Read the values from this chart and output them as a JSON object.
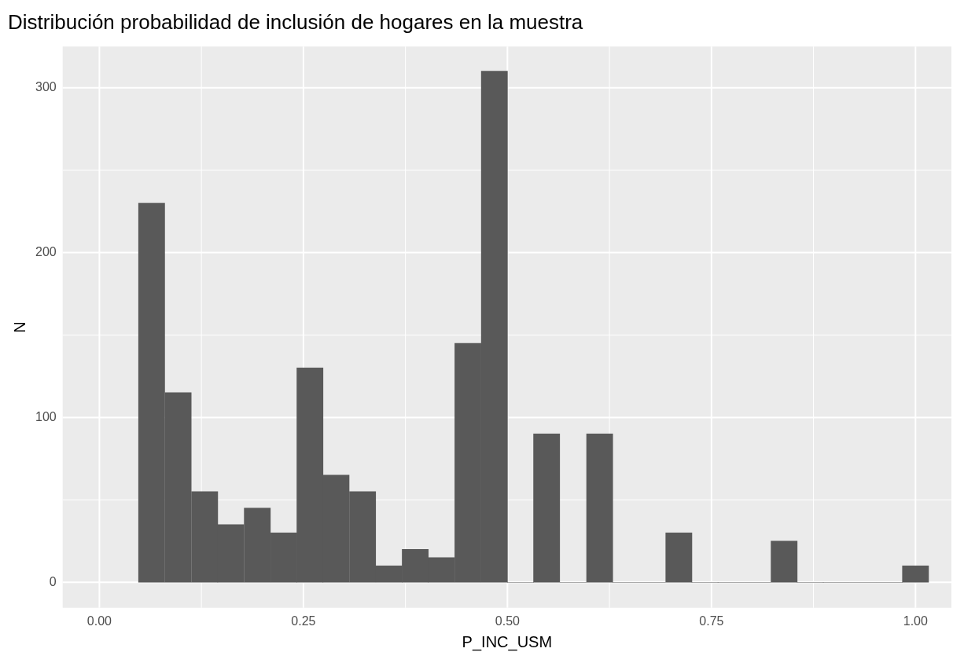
{
  "chart_data": {
    "type": "histogram",
    "title": "Distribución probabilidad de inclusión de hogares en la muestra",
    "xlabel": "P_INC_USM",
    "ylabel": "N",
    "bins": [
      0.048,
      0.08,
      0.113,
      0.145,
      0.177,
      0.21,
      0.242,
      0.274,
      0.306,
      0.339,
      0.371,
      0.403,
      0.435,
      0.468,
      0.5,
      0.532,
      0.564,
      0.597,
      0.629,
      0.661,
      0.694,
      0.726,
      0.758,
      0.79,
      0.823,
      0.855,
      0.887,
      0.919,
      0.952,
      0.984,
      1.016
    ],
    "values": [
      230,
      115,
      55,
      35,
      45,
      30,
      130,
      65,
      55,
      10,
      20,
      15,
      145,
      310,
      0,
      90,
      0,
      90,
      0,
      0,
      30,
      0,
      0,
      0,
      25,
      0,
      0,
      0,
      0,
      10
    ],
    "color": "#595959",
    "xlim": [
      -0.045,
      1.044
    ],
    "ylim": [
      -15.5,
      325
    ],
    "xticks": [
      {
        "value": 0,
        "label": "0.00"
      },
      {
        "value": 0.25,
        "label": "0.25"
      },
      {
        "value": 0.5,
        "label": "0.50"
      },
      {
        "value": 0.75,
        "label": "0.75"
      },
      {
        "value": 1,
        "label": "1.00"
      }
    ],
    "yticks": [
      0,
      100,
      200,
      300
    ],
    "grid": true,
    "legend": false
  }
}
